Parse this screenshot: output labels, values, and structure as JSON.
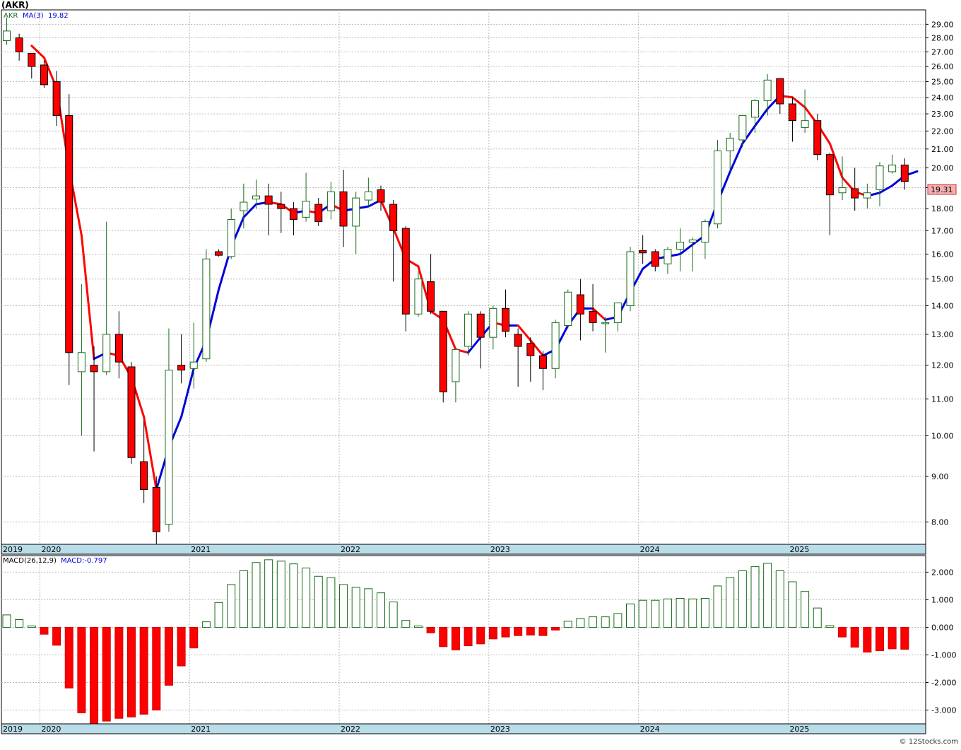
{
  "header": {
    "ticker_title": "(AKR)",
    "ticker": "AKR",
    "ma_label": "MA(3)",
    "ma_value": "19.82",
    "last_price": "19.31"
  },
  "macd_header": {
    "label": "MACD(26,12,9)",
    "value": "MACD:-0.797"
  },
  "watermark": "© 12Stocks.com",
  "colors": {
    "up": "#1a6b1a",
    "down": "#ff0000",
    "ma_up": "#0000dd",
    "ma_down": "#ff0000",
    "grid": "#bbbbbb",
    "axis_band": "#b8dce8",
    "price_tag_bg": "#f4b0b0"
  },
  "chart_data": [
    {
      "type": "candlestick",
      "interval": "monthly",
      "title": "(AKR)",
      "scale": "log",
      "ylim": [
        7.55,
        30.1
      ],
      "grid": true,
      "y_ticks": [
        8,
        9,
        10,
        11,
        12,
        13,
        14,
        15,
        16,
        17,
        18,
        19,
        20,
        21,
        22,
        23,
        24,
        25,
        26,
        27,
        28,
        29
      ],
      "y_tick_labels": [
        "8.00",
        "9.00",
        "10.00",
        "11.00",
        "12.00",
        "13.00",
        "14.00",
        "15.00",
        "16.00",
        "17.00",
        "18.00",
        "19.00",
        "20.00",
        "21.00",
        "22.00",
        "23.00",
        "24.00",
        "25.00",
        "26.00",
        "27.00",
        "28.00",
        "29.00"
      ],
      "x_labels": [
        {
          "label": "2019",
          "index": 0
        },
        {
          "label": "2020",
          "index": 3
        },
        {
          "label": "2021",
          "index": 15
        },
        {
          "label": "2022",
          "index": 27
        },
        {
          "label": "2023",
          "index": 39
        },
        {
          "label": "2024",
          "index": 51
        },
        {
          "label": "2025",
          "index": 63
        }
      ],
      "candles": [
        {
          "o": 27.8,
          "h": 29.5,
          "l": 27.5,
          "c": 28.5
        },
        {
          "o": 28.0,
          "h": 28.3,
          "l": 26.4,
          "c": 27.0
        },
        {
          "o": 26.9,
          "h": 26.9,
          "l": 25.2,
          "c": 26.0
        },
        {
          "o": 26.1,
          "h": 26.4,
          "l": 24.6,
          "c": 24.8
        },
        {
          "o": 25.0,
          "h": 25.7,
          "l": 22.3,
          "c": 22.9
        },
        {
          "o": 22.9,
          "h": 24.2,
          "l": 11.4,
          "c": 12.4
        },
        {
          "o": 11.8,
          "h": 14.8,
          "l": 10.0,
          "c": 12.4
        },
        {
          "o": 12.0,
          "h": 12.6,
          "l": 9.6,
          "c": 11.8
        },
        {
          "o": 11.8,
          "h": 17.4,
          "l": 11.7,
          "c": 13.0
        },
        {
          "o": 13.0,
          "h": 13.8,
          "l": 11.6,
          "c": 12.1
        },
        {
          "o": 11.95,
          "h": 12.1,
          "l": 9.3,
          "c": 9.45
        },
        {
          "o": 9.35,
          "h": 10.4,
          "l": 8.4,
          "c": 8.7
        },
        {
          "o": 8.75,
          "h": 9.0,
          "l": 7.55,
          "c": 7.8
        },
        {
          "o": 7.95,
          "h": 13.2,
          "l": 7.8,
          "c": 11.85
        },
        {
          "o": 12.0,
          "h": 13.0,
          "l": 11.45,
          "c": 11.85
        },
        {
          "o": 11.9,
          "h": 13.4,
          "l": 11.3,
          "c": 12.1
        },
        {
          "o": 12.2,
          "h": 16.2,
          "l": 12.1,
          "c": 15.8
        },
        {
          "o": 16.1,
          "h": 16.2,
          "l": 15.9,
          "c": 15.95
        },
        {
          "o": 15.9,
          "h": 18.0,
          "l": 15.8,
          "c": 17.5
        },
        {
          "o": 17.9,
          "h": 19.2,
          "l": 17.1,
          "c": 18.3
        },
        {
          "o": 18.45,
          "h": 19.4,
          "l": 18.0,
          "c": 18.6
        },
        {
          "o": 18.6,
          "h": 19.2,
          "l": 16.8,
          "c": 18.2
        },
        {
          "o": 18.2,
          "h": 18.8,
          "l": 16.9,
          "c": 18.0
        },
        {
          "o": 18.0,
          "h": 18.3,
          "l": 16.8,
          "c": 17.5
        },
        {
          "o": 17.6,
          "h": 19.75,
          "l": 17.4,
          "c": 18.35
        },
        {
          "o": 18.2,
          "h": 18.5,
          "l": 17.2,
          "c": 17.4
        },
        {
          "o": 17.9,
          "h": 19.3,
          "l": 17.5,
          "c": 18.8
        },
        {
          "o": 18.8,
          "h": 19.9,
          "l": 16.3,
          "c": 17.2
        },
        {
          "o": 17.2,
          "h": 18.8,
          "l": 16.0,
          "c": 18.5
        },
        {
          "o": 18.4,
          "h": 19.5,
          "l": 18.1,
          "c": 18.8
        },
        {
          "o": 18.9,
          "h": 19.1,
          "l": 17.9,
          "c": 18.3
        },
        {
          "o": 18.2,
          "h": 18.4,
          "l": 14.9,
          "c": 17.0
        },
        {
          "o": 17.1,
          "h": 17.2,
          "l": 13.1,
          "c": 13.7
        },
        {
          "o": 13.7,
          "h": 15.3,
          "l": 13.6,
          "c": 15.0
        },
        {
          "o": 14.9,
          "h": 16.0,
          "l": 13.7,
          "c": 13.8
        },
        {
          "o": 13.8,
          "h": 13.8,
          "l": 10.9,
          "c": 11.2
        },
        {
          "o": 11.5,
          "h": 12.5,
          "l": 10.9,
          "c": 12.5
        },
        {
          "o": 12.6,
          "h": 13.8,
          "l": 12.3,
          "c": 13.7
        },
        {
          "o": 13.7,
          "h": 13.8,
          "l": 11.9,
          "c": 12.9
        },
        {
          "o": 12.9,
          "h": 14.0,
          "l": 12.5,
          "c": 13.9
        },
        {
          "o": 13.9,
          "h": 14.6,
          "l": 12.9,
          "c": 13.1
        },
        {
          "o": 13.0,
          "h": 13.2,
          "l": 11.35,
          "c": 12.6
        },
        {
          "o": 12.7,
          "h": 12.9,
          "l": 11.5,
          "c": 12.3
        },
        {
          "o": 12.3,
          "h": 12.45,
          "l": 11.25,
          "c": 11.9
        },
        {
          "o": 11.9,
          "h": 13.5,
          "l": 11.6,
          "c": 13.4
        },
        {
          "o": 13.3,
          "h": 14.6,
          "l": 13.2,
          "c": 14.5
        },
        {
          "o": 14.4,
          "h": 15.0,
          "l": 12.8,
          "c": 13.7
        },
        {
          "o": 13.8,
          "h": 14.8,
          "l": 13.1,
          "c": 13.4
        },
        {
          "o": 13.4,
          "h": 13.6,
          "l": 12.4,
          "c": 13.4
        },
        {
          "o": 13.4,
          "h": 14.1,
          "l": 13.1,
          "c": 14.1
        },
        {
          "o": 14.0,
          "h": 16.3,
          "l": 13.8,
          "c": 16.1
        },
        {
          "o": 16.15,
          "h": 16.8,
          "l": 15.6,
          "c": 16.05
        },
        {
          "o": 16.1,
          "h": 16.2,
          "l": 15.3,
          "c": 15.5
        },
        {
          "o": 15.6,
          "h": 16.3,
          "l": 15.2,
          "c": 16.2
        },
        {
          "o": 16.2,
          "h": 17.1,
          "l": 15.3,
          "c": 16.5
        },
        {
          "o": 16.5,
          "h": 16.7,
          "l": 15.3,
          "c": 16.6
        },
        {
          "o": 16.5,
          "h": 17.5,
          "l": 15.8,
          "c": 17.4
        },
        {
          "o": 17.3,
          "h": 21.5,
          "l": 17.1,
          "c": 20.9
        },
        {
          "o": 20.9,
          "h": 21.9,
          "l": 19.8,
          "c": 21.6
        },
        {
          "o": 21.5,
          "h": 22.9,
          "l": 21.1,
          "c": 22.9
        },
        {
          "o": 22.8,
          "h": 23.9,
          "l": 21.9,
          "c": 23.8
        },
        {
          "o": 23.8,
          "h": 25.5,
          "l": 22.9,
          "c": 25.1
        },
        {
          "o": 25.2,
          "h": 25.2,
          "l": 23.0,
          "c": 23.6
        },
        {
          "o": 23.6,
          "h": 24.0,
          "l": 21.4,
          "c": 22.6
        },
        {
          "o": 22.2,
          "h": 24.5,
          "l": 21.9,
          "c": 22.6
        },
        {
          "o": 22.6,
          "h": 23.0,
          "l": 20.4,
          "c": 20.7
        },
        {
          "o": 20.7,
          "h": 20.8,
          "l": 16.8,
          "c": 18.65
        },
        {
          "o": 18.75,
          "h": 20.6,
          "l": 18.4,
          "c": 19.0
        },
        {
          "o": 18.95,
          "h": 20.0,
          "l": 17.9,
          "c": 18.5
        },
        {
          "o": 18.5,
          "h": 19.2,
          "l": 18.0,
          "c": 18.75
        },
        {
          "o": 18.9,
          "h": 20.3,
          "l": 18.1,
          "c": 20.1
        },
        {
          "o": 19.8,
          "h": 20.7,
          "l": 19.7,
          "c": 20.15
        },
        {
          "o": 20.15,
          "h": 20.5,
          "l": 18.9,
          "c": 19.31
        }
      ],
      "ma": {
        "name": "MA(3)",
        "start_index": 2,
        "values": [
          27.43,
          26.6,
          24.57,
          20.0,
          16.8,
          12.2,
          12.4,
          12.3,
          11.63,
          10.5,
          8.7,
          9.7,
          10.5,
          11.9,
          12.8,
          14.6,
          16.3,
          17.6,
          18.2,
          18.3,
          18.2,
          17.8,
          17.9,
          17.8,
          18.2,
          17.9,
          18.0,
          18.1,
          18.4,
          17.1,
          15.8,
          15.5,
          13.8,
          13.5,
          12.5,
          12.4,
          12.9,
          13.4,
          13.3,
          13.3,
          12.8,
          12.3,
          12.5,
          13.3,
          13.9,
          13.9,
          13.5,
          13.6,
          14.5,
          15.4,
          15.8,
          15.9,
          16.0,
          16.4,
          16.8,
          18.3,
          19.8,
          21.3,
          22.3,
          23.3,
          24.1,
          24.0,
          23.4,
          22.4,
          21.3,
          19.5,
          18.8,
          18.6,
          18.75,
          19.1,
          19.6,
          19.82
        ]
      }
    },
    {
      "type": "bar",
      "title": "MACD(26,12,9)",
      "ylim": [
        -3.5,
        2.6
      ],
      "grid": true,
      "y_ticks": [
        -3,
        -2,
        -1,
        0,
        1,
        2
      ],
      "y_tick_labels": [
        "-3.000",
        "-2.000",
        "-1.000",
        "0.000",
        "1.000",
        "2.000"
      ],
      "x_labels": [
        {
          "label": "2019",
          "index": 0
        },
        {
          "label": "2020",
          "index": 3
        },
        {
          "label": "2021",
          "index": 15
        },
        {
          "label": "2022",
          "index": 27
        },
        {
          "label": "2023",
          "index": 39
        },
        {
          "label": "2024",
          "index": 51
        },
        {
          "label": "2025",
          "index": 63
        }
      ],
      "values": [
        0.45,
        0.28,
        0.05,
        -0.25,
        -0.65,
        -2.2,
        -3.1,
        -3.5,
        -3.4,
        -3.3,
        -3.25,
        -3.15,
        -3.0,
        -2.1,
        -1.4,
        -0.75,
        0.2,
        0.9,
        1.55,
        2.05,
        2.35,
        2.45,
        2.4,
        2.3,
        2.15,
        1.85,
        1.8,
        1.55,
        1.45,
        1.4,
        1.25,
        0.92,
        0.25,
        0.05,
        -0.2,
        -0.7,
        -0.82,
        -0.67,
        -0.6,
        -0.42,
        -0.35,
        -0.3,
        -0.28,
        -0.3,
        -0.1,
        0.22,
        0.32,
        0.38,
        0.38,
        0.5,
        0.85,
        0.98,
        0.98,
        1.03,
        1.05,
        1.03,
        1.05,
        1.5,
        1.8,
        2.05,
        2.2,
        2.32,
        2.05,
        1.65,
        1.3,
        0.7,
        0.06,
        -0.35,
        -0.72,
        -0.9,
        -0.85,
        -0.78,
        -0.797
      ]
    }
  ]
}
